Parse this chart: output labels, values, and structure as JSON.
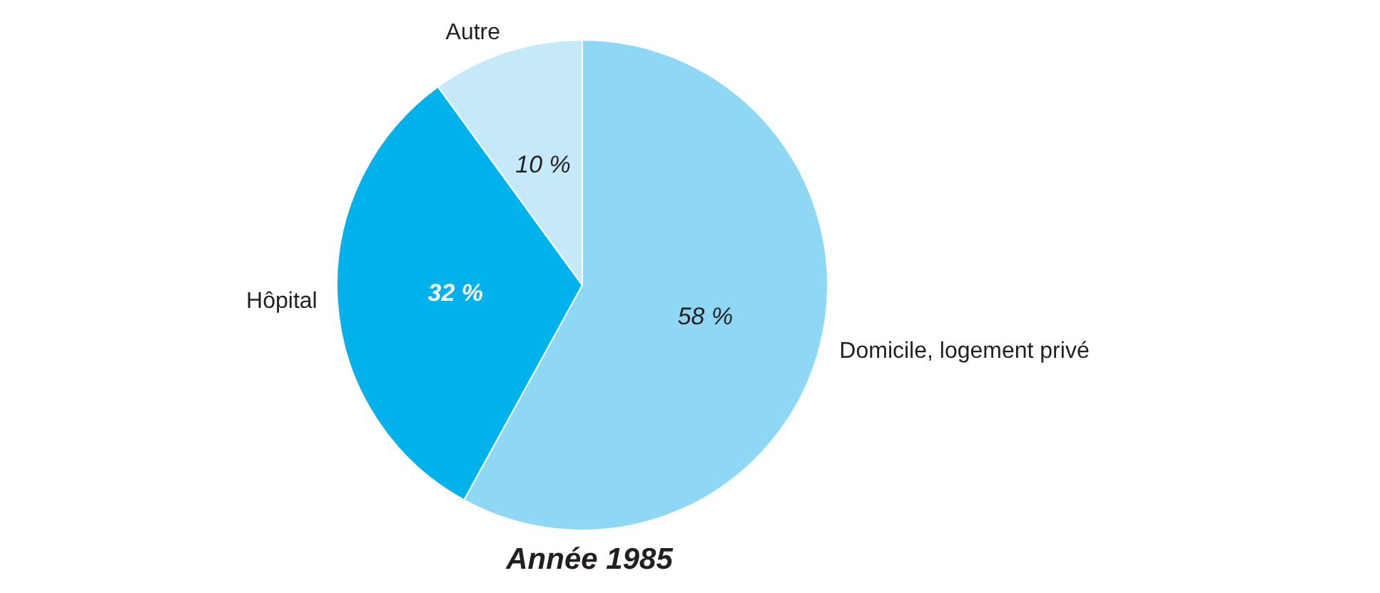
{
  "chart_data": {
    "type": "pie",
    "title": "Année 1985",
    "categories": [
      "Domicile, logement privé",
      "Hôpital",
      "Autre"
    ],
    "values": [
      58,
      32,
      10
    ],
    "colors": [
      "#8fd8f5",
      "#00b2ec",
      "#c5e9f9"
    ],
    "value_labels": [
      "58 %",
      "32 %",
      "10 %"
    ],
    "legend": false
  }
}
